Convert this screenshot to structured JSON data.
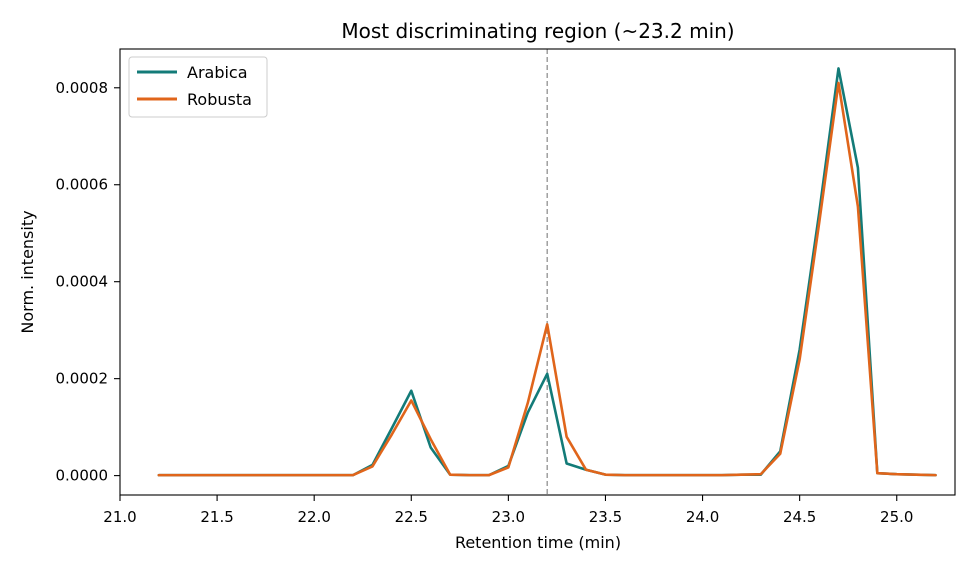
{
  "chart_data": {
    "type": "line",
    "title": "Most discriminating region (~23.2 min)",
    "xlabel": "Retention time (min)",
    "ylabel": "Norm. intensity",
    "xlim": [
      21.0,
      25.3
    ],
    "ylim": [
      -4e-05,
      0.00088
    ],
    "xticks": [
      21.0,
      21.5,
      22.0,
      22.5,
      23.0,
      23.5,
      24.0,
      24.5,
      25.0
    ],
    "xtick_labels": [
      "21.0",
      "21.5",
      "22.0",
      "22.5",
      "23.0",
      "23.5",
      "24.0",
      "24.5",
      "25.0"
    ],
    "yticks": [
      0.0,
      0.0002,
      0.0004,
      0.0006,
      0.0008
    ],
    "ytick_labels": [
      "0.0000",
      "0.0002",
      "0.0004",
      "0.0006",
      "0.0008"
    ],
    "vline_x": 23.2,
    "vline_color": "#999999",
    "grid": false,
    "legend_position": "top-left",
    "x": [
      21.2,
      21.3,
      21.4,
      21.5,
      21.6,
      21.7,
      21.8,
      21.9,
      22.0,
      22.1,
      22.2,
      22.3,
      22.4,
      22.5,
      22.6,
      22.7,
      22.8,
      22.9,
      23.0,
      23.1,
      23.2,
      23.3,
      23.4,
      23.5,
      23.6,
      23.7,
      23.8,
      23.9,
      24.0,
      24.1,
      24.2,
      24.3,
      24.4,
      24.5,
      24.6,
      24.7,
      24.8,
      24.9,
      25.0,
      25.1,
      25.2
    ],
    "series": [
      {
        "name": "Arabica",
        "color": "#137b78",
        "values": [
          1e-06,
          1e-06,
          1e-06,
          1e-06,
          1e-06,
          1e-06,
          1e-06,
          1e-06,
          1e-06,
          1e-06,
          1e-06,
          2.2e-05,
          9.8e-05,
          0.000175,
          5.8e-05,
          2e-06,
          1e-06,
          1e-06,
          2e-05,
          0.00013,
          0.00021,
          2.5e-05,
          1.2e-05,
          2e-06,
          1e-06,
          1e-06,
          1e-06,
          1e-06,
          1e-06,
          1e-06,
          2e-06,
          2e-06,
          5e-05,
          0.00026,
          0.00054,
          0.00084,
          0.000635,
          5e-06,
          3e-06,
          2e-06,
          1e-06
        ]
      },
      {
        "name": "Robusta",
        "color": "#e0651b",
        "values": [
          1e-06,
          1e-06,
          1e-06,
          1e-06,
          1e-06,
          1e-06,
          1e-06,
          1e-06,
          1e-06,
          1e-06,
          1e-06,
          1.9e-05,
          8.5e-05,
          0.000155,
          7.5e-05,
          2e-06,
          1e-06,
          1e-06,
          1.7e-05,
          0.00015,
          0.000312,
          8e-05,
          1.2e-05,
          2e-06,
          1e-06,
          1e-06,
          1e-06,
          1e-06,
          1e-06,
          1e-06,
          2e-06,
          3e-06,
          4.5e-05,
          0.00024,
          0.00052,
          0.00081,
          0.000555,
          5e-06,
          3e-06,
          2e-06,
          1e-06
        ]
      }
    ]
  }
}
